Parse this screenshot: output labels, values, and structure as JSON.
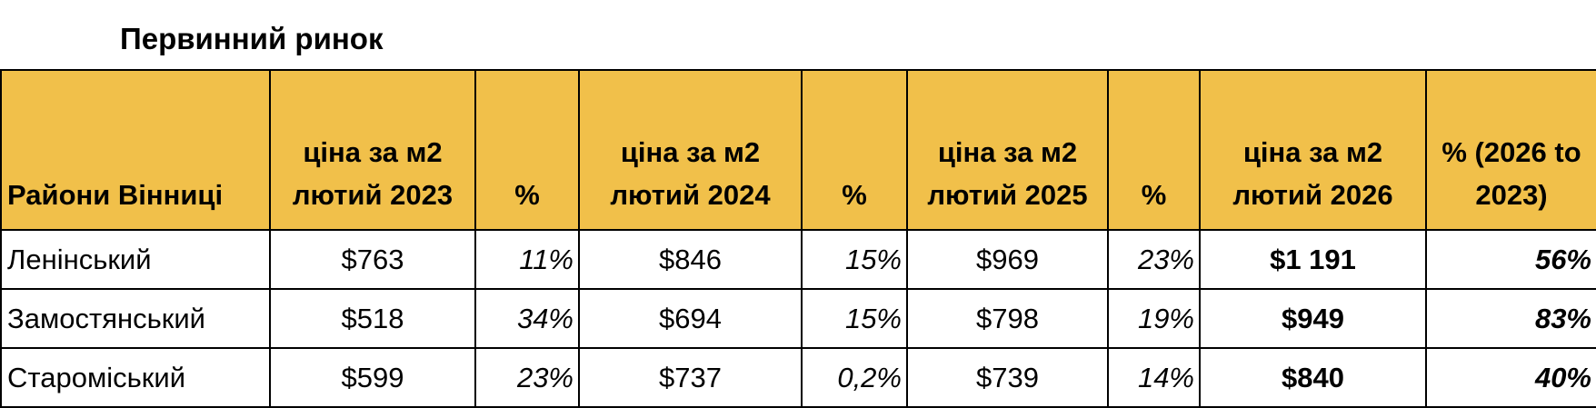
{
  "title": "Первинний ринок",
  "table": {
    "header": [
      "Райони Вінниці",
      "ціна за м2 лютий 2023",
      "%",
      "ціна за м2 лютий 2024",
      "%",
      "ціна за м2 лютий 2025",
      "%",
      "ціна за м2 лютий 2026",
      "% (2026 to 2023)"
    ],
    "rows": [
      [
        "Ленінський",
        "$763",
        "11%",
        "$846",
        "15%",
        "$969",
        "23%",
        "$1 191",
        "56%"
      ],
      [
        "Замостянський",
        "$518",
        "34%",
        "$694",
        "15%",
        "$798",
        "19%",
        "$949",
        "83%"
      ],
      [
        "Староміський",
        "$599",
        "23%",
        "$737",
        "0,2%",
        "$739",
        "14%",
        "$840",
        "40%"
      ]
    ]
  }
}
